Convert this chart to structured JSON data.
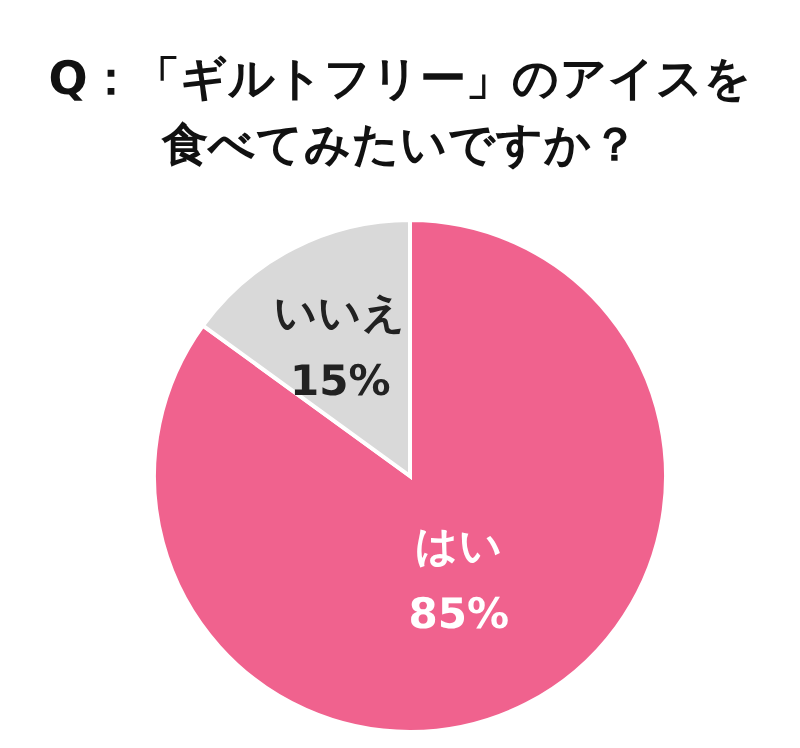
{
  "chart_data": {
    "type": "pie",
    "title": "Q：「ギルトフリー」のアイスを食べてみたいですか？",
    "categories": [
      "はい",
      "いいえ"
    ],
    "values": [
      85,
      15
    ],
    "value_labels": [
      "85%",
      "15%"
    ],
    "colors": [
      "#f0628e",
      "#d9d9d9"
    ],
    "legend": false
  }
}
